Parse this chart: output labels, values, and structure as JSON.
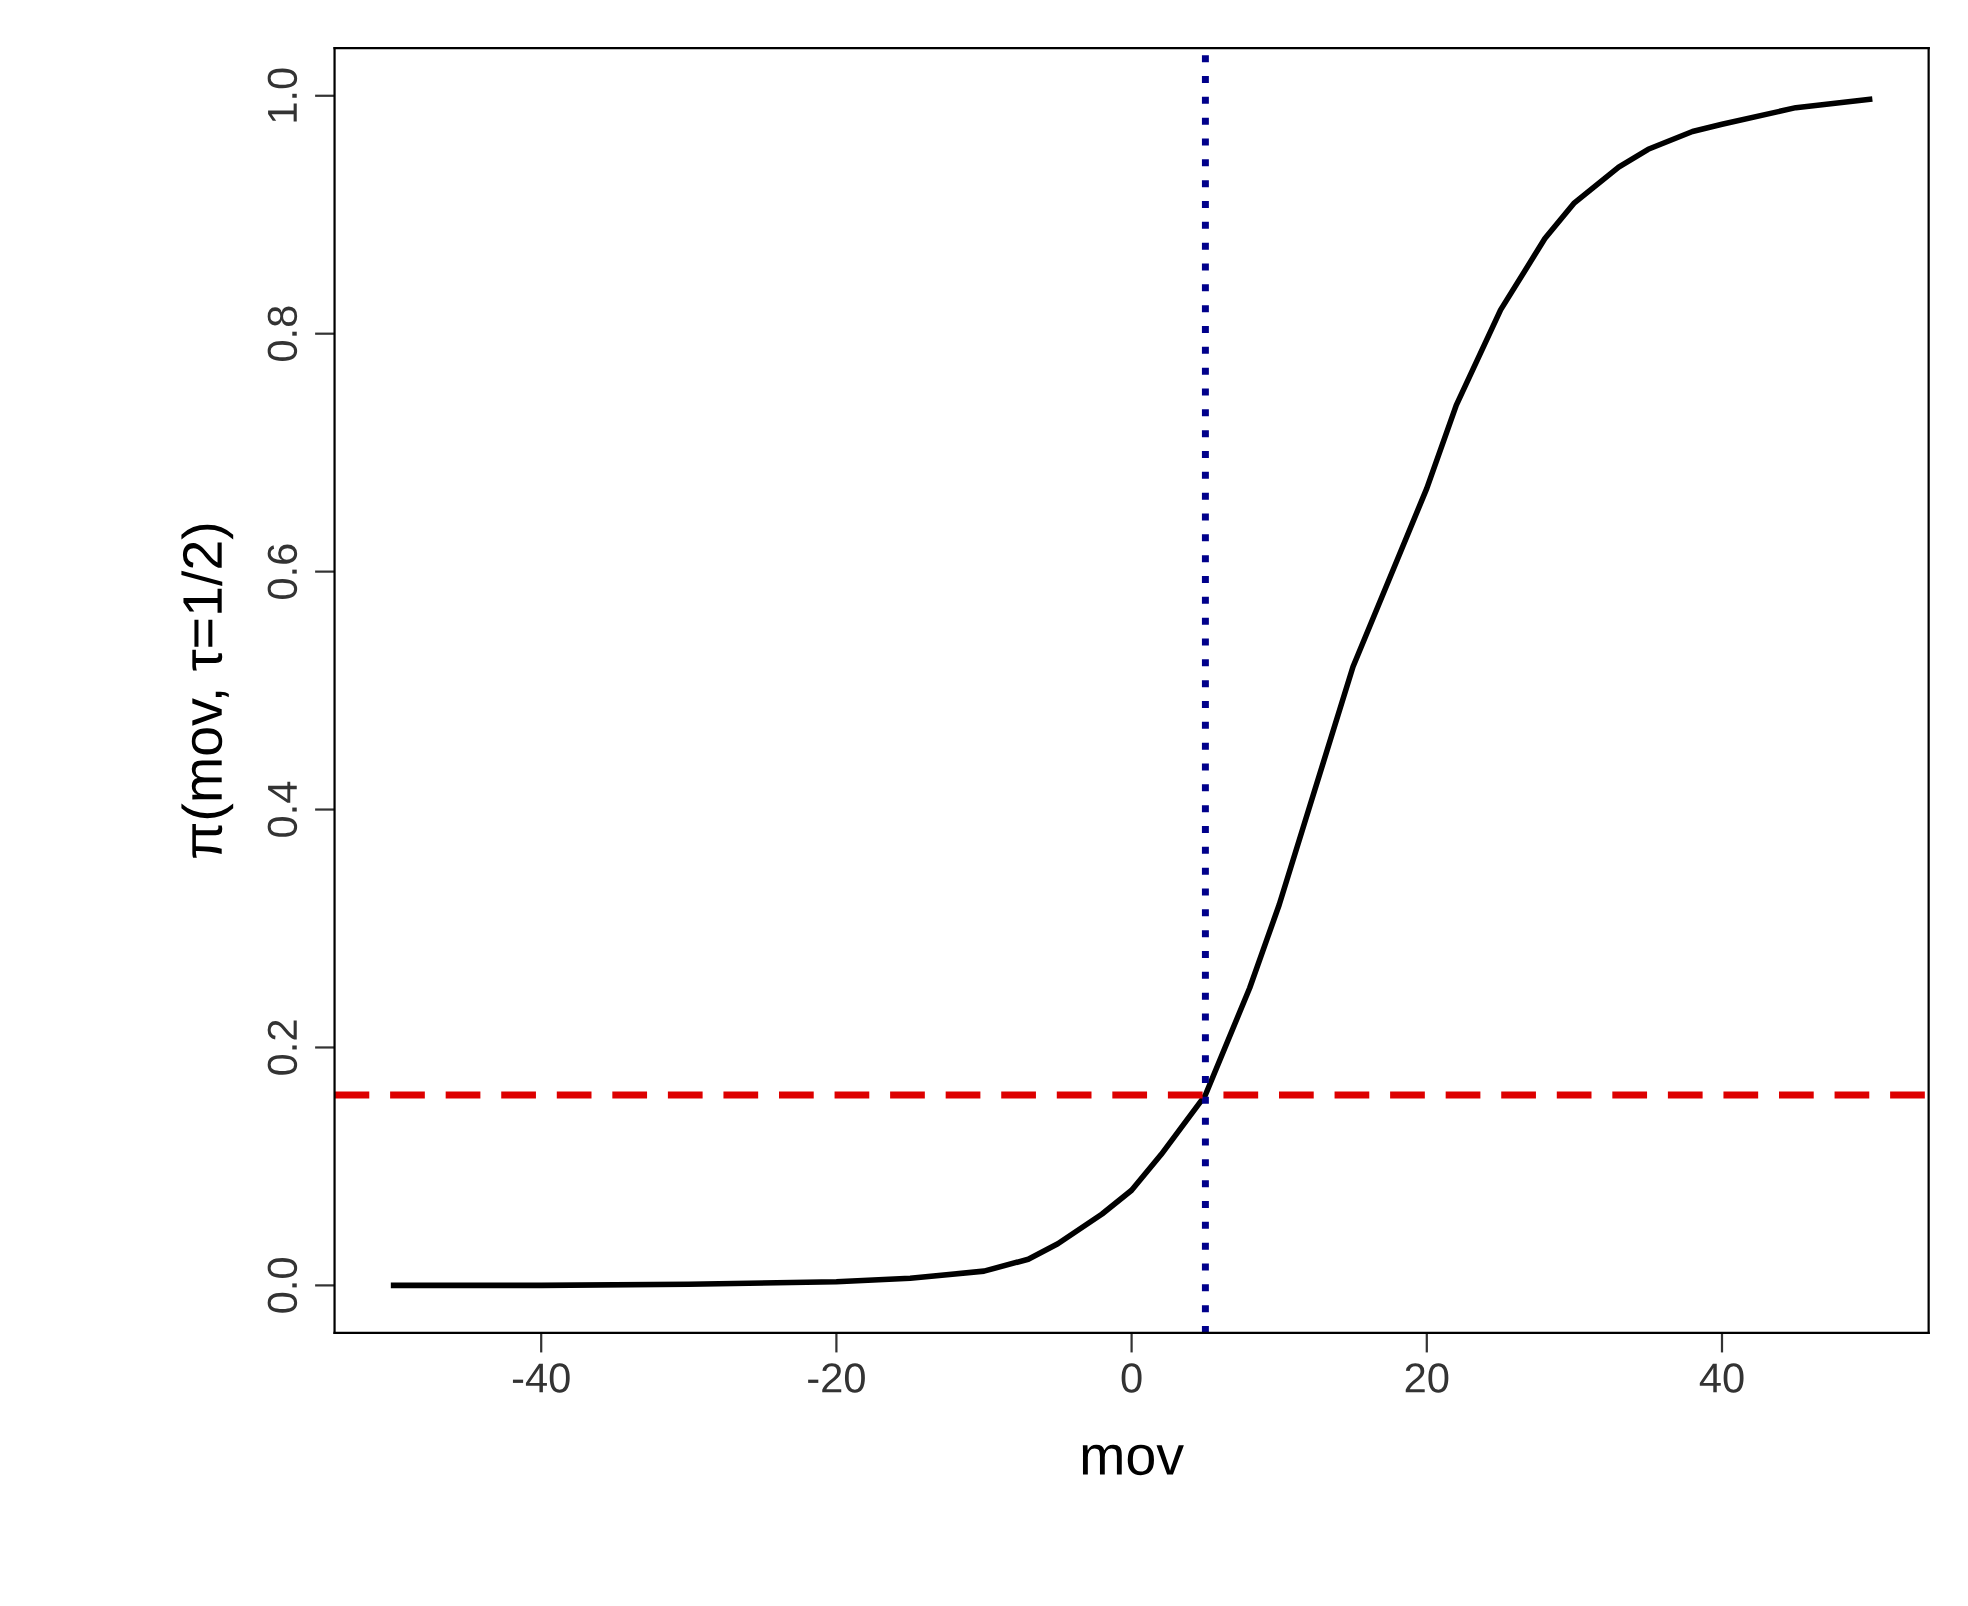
{
  "chart_data": {
    "type": "line",
    "xlabel": "mov",
    "ylabel": "π(mov, τ=1/2)",
    "series": [
      {
        "color": "#000000",
        "x": [
          -50,
          -40,
          -30,
          -20,
          -15,
          -10,
          -7,
          -5,
          -2,
          0,
          2,
          5,
          8,
          10,
          12,
          15,
          18,
          20,
          22,
          25,
          28,
          30,
          33,
          35,
          38,
          40,
          45,
          50
        ],
        "values": [
          0.0,
          0.0,
          0.001,
          0.003,
          0.006,
          0.012,
          0.022,
          0.035,
          0.06,
          0.08,
          0.11,
          0.16,
          0.25,
          0.32,
          0.4,
          0.52,
          0.61,
          0.67,
          0.74,
          0.82,
          0.88,
          0.91,
          0.94,
          0.955,
          0.97,
          0.976,
          0.99,
          0.997
        ]
      }
    ],
    "xlim": [
      -54,
      54
    ],
    "ylim": [
      -0.04,
      1.04
    ],
    "xticks": [
      -40,
      -20,
      0,
      20,
      40
    ],
    "yticks": [
      {
        "value": 0,
        "label": "0.0"
      },
      {
        "value": 0.2,
        "label": "0.2"
      },
      {
        "value": 0.4,
        "label": "0.4"
      },
      {
        "value": 0.6,
        "label": "0.6"
      },
      {
        "value": 0.8,
        "label": "0.8"
      },
      {
        "value": 1,
        "label": "1.0"
      }
    ],
    "ref_lines": [
      {
        "axis": "x",
        "value": 5,
        "color": "#00008b",
        "line_style": "dotted"
      },
      {
        "axis": "y",
        "value": 0.16,
        "color": "#dd0000",
        "line_style": "dashed"
      }
    ],
    "grid": false,
    "legend": false,
    "marker": "none",
    "line_style": "solid"
  }
}
